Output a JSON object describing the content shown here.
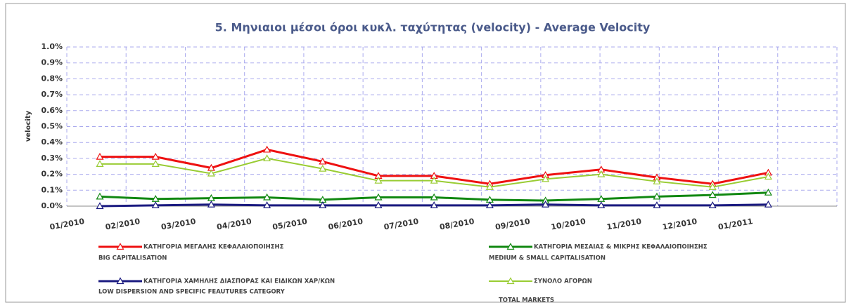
{
  "chart_data": {
    "type": "line",
    "title": "5. Μηνιαιοι μέσοι όροι κυκλ. ταχύτητας (velocity) - Average Velocity",
    "y_label": "velocity",
    "categories": [
      "01/2010",
      "02/2010",
      "03/2010",
      "04/2010",
      "05/2010",
      "06/2010",
      "07/2010",
      "08/2010",
      "09/2010",
      "10/2010",
      "11/2010",
      "12/2010",
      "01/2011"
    ],
    "series": [
      {
        "name": "ΚΑΤΗΓΟΡΙΑ ΜΕΓΑΛΗΣ ΚΕΦΑΛΑΙΟΠΟΙΗΣΗΣ",
        "name_en": "BIG CAPITALISATION",
        "color": "#ee1111",
        "values": [
          0.31,
          0.31,
          0.24,
          0.355,
          0.28,
          0.19,
          0.19,
          0.14,
          0.195,
          0.23,
          0.18,
          0.14,
          0.21
        ]
      },
      {
        "name": "ΚΑΤΗΓΟΡΙΑ ΜΕΣΑΙΑΣ & ΜΙΚΡΗΣ ΚΕΦΑΛΑΙΟΠΟΙΗΣΗΣ",
        "name_en": "MEDIUM & SMALL CAPITALISATION",
        "color": "#118811",
        "values": [
          0.06,
          0.045,
          0.05,
          0.055,
          0.04,
          0.055,
          0.055,
          0.04,
          0.035,
          0.045,
          0.06,
          0.07,
          0.085
        ]
      },
      {
        "name": "ΚΑΤΗΓΟΡΙΑ ΧΑΜΗΛΗΣ ΔΙΑΣΠΟΡΑΣ ΚΑΙ ΕΙΔΙΚΩΝ ΧΑΡ/ΚΩΝ",
        "name_en": "LOW DISPERSION AND SPECIFIC FEAUTURES CATEGORY",
        "color": "#1a1a80",
        "values": [
          0.0,
          0.005,
          0.01,
          0.005,
          0.005,
          0.005,
          0.005,
          0.005,
          0.01,
          0.005,
          0.005,
          0.005,
          0.01
        ]
      },
      {
        "name": "ΣΥΝΟΛΟ ΑΓΟΡΩΝ",
        "name_en": "TOTAL MARKETS",
        "color": "#99cc33",
        "values": [
          0.265,
          0.265,
          0.205,
          0.3,
          0.235,
          0.16,
          0.16,
          0.12,
          0.17,
          0.2,
          0.155,
          0.12,
          0.185
        ]
      }
    ],
    "ylim": [
      0,
      1.0
    ],
    "yticks": [
      {
        "value": 0,
        "label": "0.0%"
      },
      {
        "value": 0.1,
        "label": "0.1%"
      },
      {
        "value": 0.2,
        "label": "0.2%"
      },
      {
        "value": 0.3,
        "label": "0.3%"
      },
      {
        "value": 0.4,
        "label": "0.4%"
      },
      {
        "value": 0.5,
        "label": "0.5%"
      },
      {
        "value": 0.6,
        "label": "0.6%"
      },
      {
        "value": 0.7,
        "label": "0.7%"
      },
      {
        "value": 0.8,
        "label": "0.8%"
      },
      {
        "value": 0.9,
        "label": "0.9%"
      },
      {
        "value": 1.0,
        "label": "1.0%"
      }
    ],
    "grid": true
  }
}
